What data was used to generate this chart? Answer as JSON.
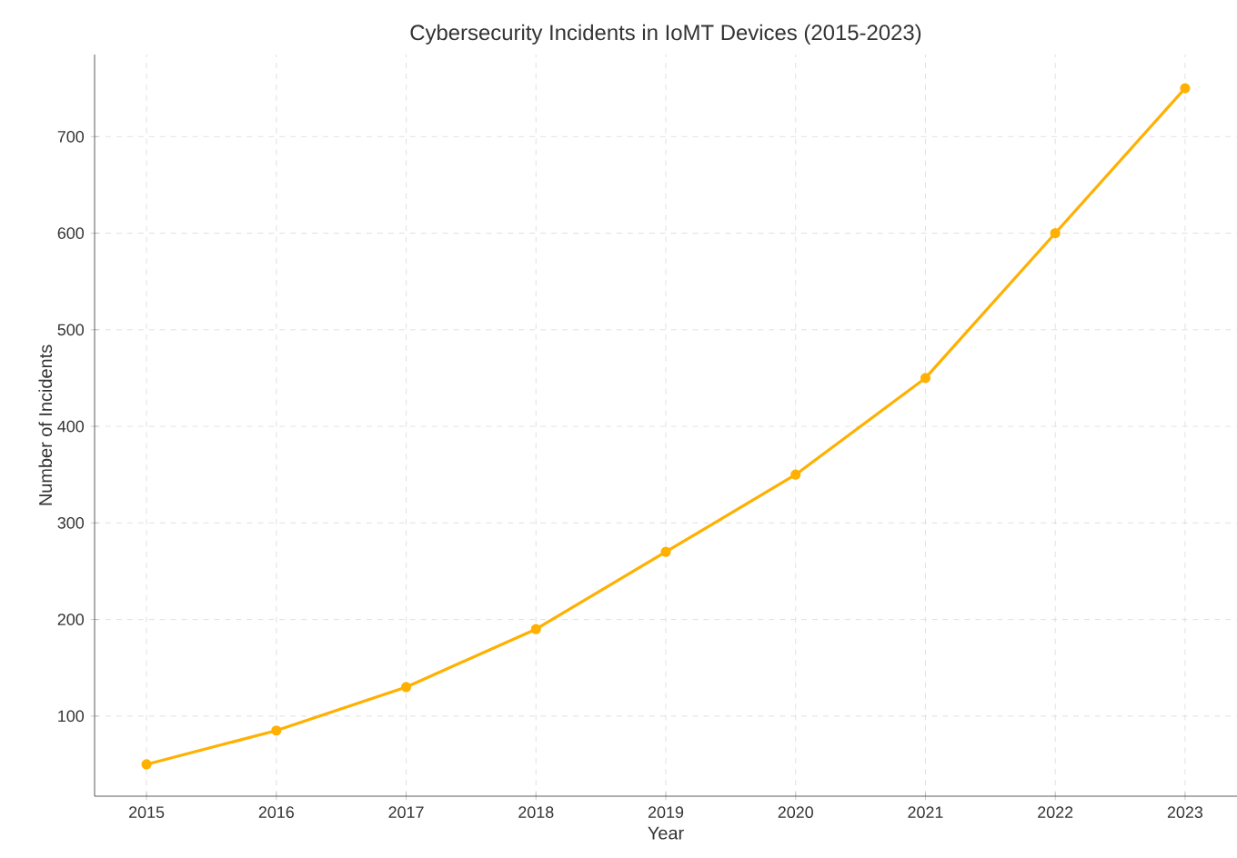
{
  "chart_data": {
    "type": "line",
    "title": "Cybersecurity Incidents in IoMT Devices (2015-2023)",
    "xlabel": "Year",
    "ylabel": "Number of Incidents",
    "x": [
      2015,
      2016,
      2017,
      2018,
      2019,
      2020,
      2021,
      2022,
      2023
    ],
    "series": [
      {
        "color": "#ffb000",
        "values": [
          50,
          85,
          130,
          190,
          270,
          350,
          450,
          600,
          750
        ]
      }
    ],
    "xlim": [
      2014.6,
      2023.4
    ],
    "ylim": [
      17,
      785
    ],
    "xticks": [
      2015,
      2016,
      2017,
      2018,
      2019,
      2020,
      2021,
      2022,
      2023
    ],
    "yticks": [
      100,
      200,
      300,
      400,
      500,
      600,
      700
    ],
    "grid": true,
    "marker": "circle",
    "line_style": "solid"
  }
}
